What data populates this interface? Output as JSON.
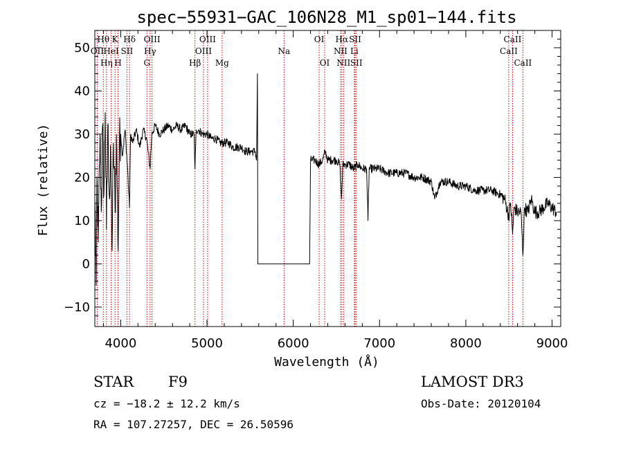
{
  "chart_data": {
    "type": "line",
    "title": "spec−55931−GAC_106N28_M1_sp01−144.fits",
    "xlabel": "Wavelength (Å)",
    "ylabel": "Flux (relative)",
    "xlim": [
      3700,
      9100
    ],
    "ylim": [
      -14.5,
      54
    ],
    "x_ticks": [
      4000,
      5000,
      6000,
      7000,
      8000,
      9000
    ],
    "x_tick_labels": [
      "4000",
      "5000",
      "6000",
      "7000",
      "8000",
      "9000"
    ],
    "y_ticks": [
      -10,
      0,
      10,
      20,
      30,
      40,
      50
    ],
    "y_tick_labels": [
      "−10",
      "0",
      "10",
      "20",
      "30",
      "40",
      "50"
    ],
    "series": [
      {
        "name": "flux",
        "color": "#000000",
        "anchors": [
          [
            3700,
            15
          ],
          [
            3715,
            -5
          ],
          [
            3725,
            20
          ],
          [
            3740,
            5
          ],
          [
            3760,
            30
          ],
          [
            3775,
            12
          ],
          [
            3790,
            32
          ],
          [
            3805,
            16
          ],
          [
            3820,
            35
          ],
          [
            3835,
            8
          ],
          [
            3850,
            32
          ],
          [
            3870,
            15
          ],
          [
            3885,
            24
          ],
          [
            3900,
            3
          ],
          [
            3915,
            28
          ],
          [
            3935,
            12
          ],
          [
            3950,
            30
          ],
          [
            3970,
            3
          ],
          [
            3985,
            28
          ],
          [
            4000,
            30
          ],
          [
            4020,
            25
          ],
          [
            4050,
            31
          ],
          [
            4080,
            22
          ],
          [
            4101,
            13
          ],
          [
            4115,
            30
          ],
          [
            4140,
            28
          ],
          [
            4180,
            31
          ],
          [
            4220,
            27
          ],
          [
            4260,
            31
          ],
          [
            4300,
            29
          ],
          [
            4340,
            22
          ],
          [
            4360,
            30
          ],
          [
            4400,
            32
          ],
          [
            4450,
            30
          ],
          [
            4500,
            31
          ],
          [
            4550,
            32
          ],
          [
            4600,
            31
          ],
          [
            4650,
            32
          ],
          [
            4700,
            31
          ],
          [
            4750,
            32
          ],
          [
            4800,
            30
          ],
          [
            4850,
            30
          ],
          [
            4861,
            22
          ],
          [
            4875,
            31
          ],
          [
            4900,
            31
          ],
          [
            4950,
            30
          ],
          [
            5000,
            30
          ],
          [
            5050,
            29
          ],
          [
            5100,
            29
          ],
          [
            5150,
            28
          ],
          [
            5200,
            28
          ],
          [
            5250,
            28
          ],
          [
            5300,
            27
          ],
          [
            5350,
            27
          ],
          [
            5400,
            27
          ],
          [
            5450,
            26
          ],
          [
            5500,
            26
          ],
          [
            5560,
            26
          ],
          [
            5575,
            24
          ],
          [
            5585,
            44
          ],
          [
            5590,
            0
          ],
          [
            6190,
            0
          ],
          [
            6200,
            24
          ],
          [
            6250,
            24
          ],
          [
            6300,
            23
          ],
          [
            6340,
            24
          ],
          [
            6370,
            26
          ],
          [
            6400,
            24
          ],
          [
            6450,
            24
          ],
          [
            6500,
            24
          ],
          [
            6540,
            23
          ],
          [
            6560,
            15
          ],
          [
            6575,
            23
          ],
          [
            6600,
            23
          ],
          [
            6650,
            23
          ],
          [
            6700,
            22
          ],
          [
            6750,
            23
          ],
          [
            6800,
            22
          ],
          [
            6850,
            22
          ],
          [
            6866,
            10
          ],
          [
            6880,
            22
          ],
          [
            6950,
            22
          ],
          [
            7000,
            22
          ],
          [
            7100,
            21
          ],
          [
            7200,
            21
          ],
          [
            7300,
            21
          ],
          [
            7400,
            20
          ],
          [
            7500,
            20
          ],
          [
            7600,
            19
          ],
          [
            7640,
            15
          ],
          [
            7700,
            19
          ],
          [
            7800,
            19
          ],
          [
            7900,
            18
          ],
          [
            8000,
            18
          ],
          [
            8100,
            17
          ],
          [
            8200,
            17
          ],
          [
            8300,
            17
          ],
          [
            8400,
            16
          ],
          [
            8450,
            15
          ],
          [
            8498,
            11
          ],
          [
            8520,
            14
          ],
          [
            8542,
            7
          ],
          [
            8560,
            13
          ],
          [
            8600,
            12
          ],
          [
            8640,
            12
          ],
          [
            8662,
            2
          ],
          [
            8680,
            13
          ],
          [
            8720,
            12
          ],
          [
            8760,
            15
          ],
          [
            8800,
            12
          ],
          [
            8850,
            12
          ],
          [
            8900,
            13
          ],
          [
            8950,
            14
          ],
          [
            9000,
            13
          ],
          [
            9050,
            12
          ]
        ]
      }
    ],
    "line_markers": [
      {
        "wavelength": 3727,
        "label": "OII",
        "row": 2
      },
      {
        "wavelength": 3798,
        "label": "Hθ",
        "row": 1
      },
      {
        "wavelength": 3835,
        "label": "Hη",
        "row": 3
      },
      {
        "wavelength": 3889,
        "label": "HeI",
        "row": 2
      },
      {
        "wavelength": 3934,
        "label": "K",
        "row": 1
      },
      {
        "wavelength": 3969,
        "label": "H",
        "row": 3
      },
      {
        "wavelength": 4072,
        "label": "SII",
        "row": 2
      },
      {
        "wavelength": 4102,
        "label": "Hδ",
        "row": 1
      },
      {
        "wavelength": 4304,
        "label": "G",
        "row": 3
      },
      {
        "wavelength": 4340,
        "label": "Hγ",
        "row": 2
      },
      {
        "wavelength": 4363,
        "label": "OIII",
        "row": 1
      },
      {
        "wavelength": 4861,
        "label": "Hβ",
        "row": 3
      },
      {
        "wavelength": 4959,
        "label": "OIII",
        "row": 2
      },
      {
        "wavelength": 5007,
        "label": "OIII",
        "row": 1
      },
      {
        "wavelength": 5175,
        "label": "Mg",
        "row": 3
      },
      {
        "wavelength": 5893,
        "label": "Na",
        "row": 2
      },
      {
        "wavelength": 6300,
        "label": "OI",
        "row": 1
      },
      {
        "wavelength": 6364,
        "label": "OI",
        "row": 3
      },
      {
        "wavelength": 6548,
        "label": "NII",
        "row": 2
      },
      {
        "wavelength": 6563,
        "label": "Hα",
        "row": 1
      },
      {
        "wavelength": 6583,
        "label": "NII",
        "row": 3
      },
      {
        "wavelength": 6708,
        "label": "Li",
        "row": 2
      },
      {
        "wavelength": 6717,
        "label": "SII",
        "row": 1
      },
      {
        "wavelength": 6731,
        "label": "SII",
        "row": 3
      },
      {
        "wavelength": 8498,
        "label": "CaII",
        "row": 2
      },
      {
        "wavelength": 8542,
        "label": "CaII",
        "row": 1
      },
      {
        "wavelength": 8662,
        "label": "CaII",
        "row": 3
      }
    ],
    "marker_color": "#c00000"
  },
  "info": {
    "object_class": "STAR",
    "subclass": "F9",
    "cz": "cz = −18.2 ± 12.2 km/s",
    "coords": "RA = 107.27257, DEC =  26.50596",
    "survey": "LAMOST DR3",
    "obs_date": "Obs-Date: 20120104"
  }
}
